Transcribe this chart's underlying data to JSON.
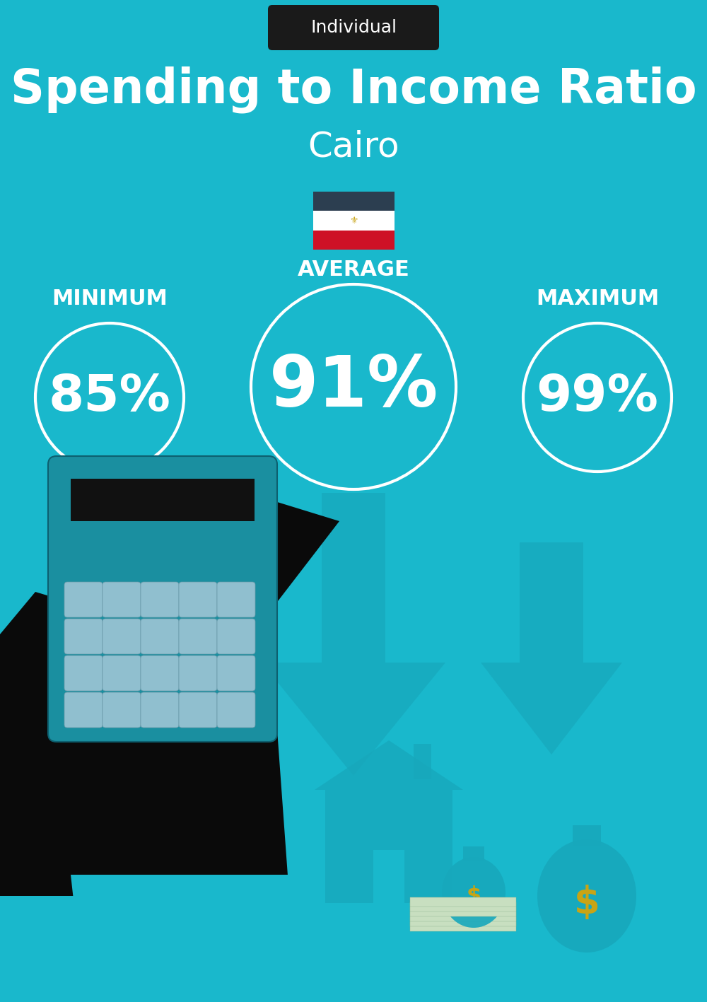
{
  "title": "Spending to Income Ratio",
  "city": "Cairo",
  "tag_label": "Individual",
  "tag_bg": "#1a1a1a",
  "tag_text_color": "#ffffff",
  "bg_color": "#19b8cc",
  "text_color": "#ffffff",
  "circle_color": "#ffffff",
  "min_label": "MINIMUM",
  "avg_label": "AVERAGE",
  "max_label": "MAXIMUM",
  "min_value": "85%",
  "avg_value": "91%",
  "max_value": "99%",
  "title_fontsize": 48,
  "city_fontsize": 36,
  "tag_fontsize": 18,
  "label_fontsize": 22,
  "min_fontsize": 52,
  "avg_fontsize": 72,
  "max_fontsize": 52,
  "flag_colors": [
    "#CE1126",
    "#FFFFFF",
    "#2C3E50"
  ],
  "flag_emblem_color": "#C8A415",
  "arrow_color": "#17a8bc",
  "house_color": "#17a8bc",
  "calc_body_color": "#1a8fa0",
  "calc_screen_color": "#111111",
  "calc_btn_color": "#90bfcf",
  "hand_color": "#0a0a0a",
  "cuff_color": "#19b8cc",
  "bag_color": "#17a8bc",
  "dollar_color": "#c8a415",
  "bill_color": "#d4e8d0"
}
